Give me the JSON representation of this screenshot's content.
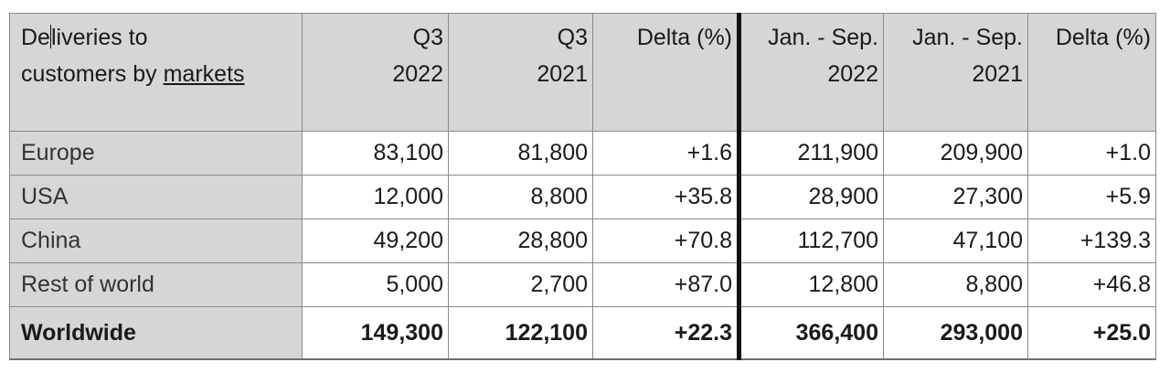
{
  "table": {
    "header": {
      "label_part1": "De",
      "label_part2": "liveries to",
      "label_line2_prefix": "customers by ",
      "label_line2_underlined": "markets",
      "columns": [
        {
          "line1": "Q3",
          "line2": "2022"
        },
        {
          "line1": "Q3",
          "line2": "2021"
        },
        {
          "line1": "Delta (%)",
          "line2": ""
        },
        {
          "line1": "Jan. - Sep.",
          "line2": "2022"
        },
        {
          "line1": "Jan. - Sep.",
          "line2": "2021"
        },
        {
          "line1": "Delta (%)",
          "line2": ""
        }
      ]
    },
    "rows": [
      {
        "market": "Europe",
        "values": [
          "83,100",
          "81,800",
          "+1.6",
          "211,900",
          "209,900",
          "+1.0"
        ]
      },
      {
        "market": "USA",
        "values": [
          "12,000",
          "8,800",
          "+35.8",
          "28,900",
          "27,300",
          "+5.9"
        ]
      },
      {
        "market": "China",
        "values": [
          "49,200",
          "28,800",
          "+70.8",
          "112,700",
          "47,100",
          "+139.3"
        ]
      },
      {
        "market": "Rest of world",
        "values": [
          "5,000",
          "2,700",
          "+87.0",
          "12,800",
          "8,800",
          "+46.8"
        ]
      }
    ],
    "total": {
      "market": "Worldwide",
      "values": [
        "149,300",
        "122,100",
        "+22.3",
        "366,400",
        "293,000",
        "+25.0"
      ]
    }
  }
}
